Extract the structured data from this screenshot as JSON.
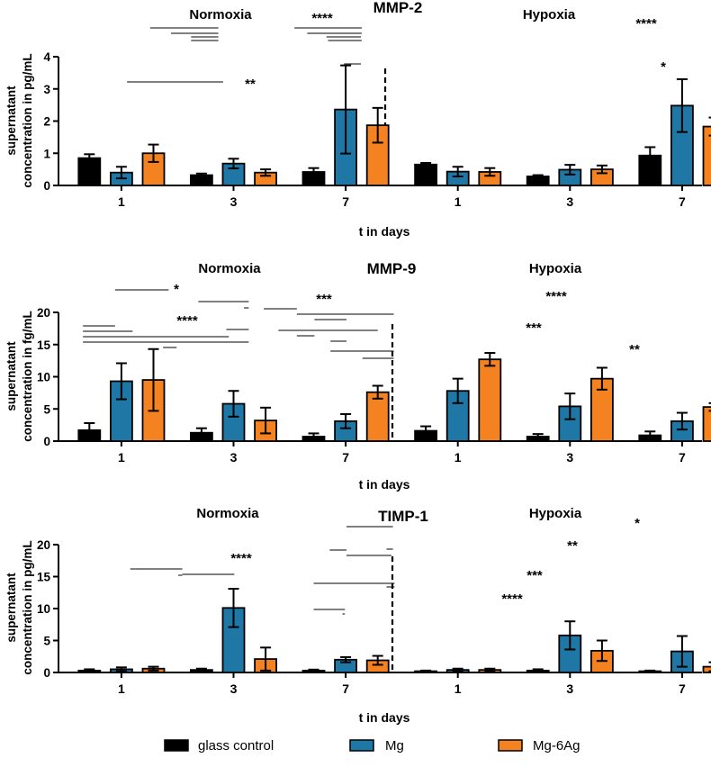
{
  "colors": {
    "glass": "#000000",
    "mg": "#1f77a6",
    "mgag": "#f58220",
    "line": "#000000"
  },
  "legend": [
    {
      "key": "glass",
      "label": "glass control"
    },
    {
      "key": "mg",
      "label": "Mg"
    },
    {
      "key": "mgag",
      "label": "Mg-6Ag"
    }
  ],
  "chart_data": [
    {
      "type": "bar",
      "title": "MMP-2",
      "ylabel_line1": "supernatant",
      "ylabel_line2": "concentration in pg/mL",
      "xlabel": "t in days",
      "ylim": [
        0,
        4
      ],
      "yticks": [
        "0",
        "1",
        "2",
        "3",
        "4"
      ],
      "conditions": [
        "Normoxia",
        "Hypoxia"
      ],
      "categories": [
        "1",
        "3",
        "7",
        "1",
        "3",
        "7"
      ],
      "series": [
        {
          "name": "glass control",
          "values": [
            0.85,
            0.32,
            0.42,
            0.65,
            0.28,
            0.93
          ],
          "errors": [
            0.12,
            0.05,
            0.12,
            0.05,
            0.04,
            0.26
          ]
        },
        {
          "name": "Mg",
          "values": [
            0.4,
            0.68,
            2.36,
            0.43,
            0.49,
            2.48
          ],
          "errors": [
            0.18,
            0.15,
            1.37,
            0.15,
            0.15,
            0.82
          ]
        },
        {
          "name": "Mg-6Ag",
          "values": [
            1.0,
            0.4,
            1.87,
            0.42,
            0.5,
            1.83
          ],
          "errors": [
            0.27,
            0.1,
            0.54,
            0.12,
            0.12,
            0.28
          ]
        }
      ],
      "significance": [
        {
          "label": "****",
          "lines": [
            [
              4.3,
              8.55
            ],
            [
              5.6,
              8.55
            ],
            [
              6.85,
              8.55
            ],
            [
              6.85,
              8.55
            ]
          ]
        },
        {
          "label": "**",
          "lines": [
            [
              2.85,
              8.85
            ]
          ]
        },
        {
          "label": "****",
          "lines": [
            [
              13.3,
              17.5
            ],
            [
              14.1,
              17.5
            ],
            [
              15.3,
              17.45
            ],
            [
              15.4,
              17.5
            ]
          ]
        },
        {
          "label": "*",
          "lines": [
            [
              16.4,
              17.45
            ]
          ]
        }
      ]
    },
    {
      "type": "bar",
      "title": "MMP-9",
      "ylabel_line1": "supernatant",
      "ylabel_line2": "concentration in fg/mL",
      "xlabel": "t in days",
      "ylim": [
        0,
        20
      ],
      "yticks": [
        "0",
        "5",
        "10",
        "15",
        "20"
      ],
      "conditions": [
        "Normoxia",
        "Hypoxia"
      ],
      "categories": [
        "1",
        "3",
        "7",
        "1",
        "3",
        "7"
      ],
      "series": [
        {
          "name": "glass control",
          "values": [
            1.7,
            1.3,
            0.7,
            1.6,
            0.7,
            0.9
          ],
          "errors": [
            1.1,
            0.7,
            0.5,
            0.7,
            0.4,
            0.6
          ]
        },
        {
          "name": "Mg",
          "values": [
            9.3,
            5.8,
            3.1,
            7.8,
            5.4,
            3.1
          ],
          "errors": [
            2.8,
            2.0,
            1.1,
            1.9,
            2.0,
            1.3
          ]
        },
        {
          "name": "Mg-6Ag",
          "values": [
            9.5,
            3.2,
            7.6,
            12.7,
            9.7,
            5.3
          ],
          "errors": [
            4.8,
            2.0,
            1.0,
            1.0,
            1.7,
            0.6
          ]
        }
      ],
      "significance": [
        {
          "label": "*",
          "lines": [
            [
              2.1,
              5.45
            ]
          ]
        },
        {
          "label": "***",
          "lines": [
            [
              7.3,
              10.45
            ],
            [
              10.15,
              10.45
            ]
          ]
        },
        {
          "label": "****",
          "lines": [
            [
              0.1,
              2.1
            ],
            [
              0.1,
              3.2
            ],
            [
              0.1,
              9.2
            ],
            [
              0.1,
              10.45
            ],
            [
              5.1,
              5.95
            ],
            [
              9.05,
              10.45
            ]
          ]
        },
        {
          "label": "****",
          "lines": [
            [
              11.4,
              12.45
            ],
            [
              11.4,
              13.45
            ],
            [
              13.45,
              19.5
            ],
            [
              14.55,
              16.55
            ]
          ]
        },
        {
          "label": "***",
          "lines": [
            [
              12.3,
              18.5
            ],
            [
              13.45,
              14.55
            ],
            [
              15.55,
              16.55
            ]
          ]
        },
        {
          "label": "**",
          "lines": [
            [
              15.55,
              19.5
            ],
            [
              17.55,
              19.5
            ]
          ]
        }
      ]
    },
    {
      "type": "bar",
      "title": "TIMP-1",
      "ylabel_line1": "supernatant",
      "ylabel_line2": "concentration in pg/mL",
      "xlabel": "t in days",
      "ylim": [
        0,
        20
      ],
      "yticks": [
        "0",
        "5",
        "10",
        "15",
        "20"
      ],
      "conditions": [
        "Normoxia",
        "Hypoxia"
      ],
      "categories": [
        "1",
        "3",
        "7",
        "1",
        "3",
        "7"
      ],
      "series": [
        {
          "name": "glass control",
          "values": [
            0.3,
            0.4,
            0.3,
            0.2,
            0.3,
            0.2
          ],
          "errors": [
            0.2,
            0.2,
            0.15,
            0.1,
            0.2,
            0.1
          ]
        },
        {
          "name": "Mg",
          "values": [
            0.5,
            10.1,
            2.0,
            0.4,
            5.8,
            3.3
          ],
          "errors": [
            0.3,
            3.0,
            0.4,
            0.2,
            2.2,
            2.4
          ]
        },
        {
          "name": "Mg-6Ag",
          "values": [
            0.6,
            2.1,
            1.9,
            0.4,
            3.4,
            0.9
          ],
          "errors": [
            0.3,
            1.8,
            0.7,
            0.2,
            1.6,
            0.7
          ]
        }
      ],
      "significance": [
        {
          "label": "****",
          "lines": [
            [
              3.05,
              6.3
            ],
            [
              6.05,
              6.3
            ],
            [
              6.3,
              6.55
            ],
            [
              6.55,
              9.55
            ]
          ]
        },
        {
          "label": "****",
          "lines": [
            [
              14.5,
              16.45
            ],
            [
              16.3,
              16.45
            ]
          ]
        },
        {
          "label": "***",
          "lines": [
            [
              14.5,
              19.55
            ],
            [
              19.05,
              19.55
            ]
          ]
        },
        {
          "label": "**",
          "lines": [
            [
              15.5,
              16.55
            ],
            [
              16.55,
              19.35
            ]
          ]
        },
        {
          "label": "*",
          "lines": [
            [
              16.55,
              19.45
            ],
            [
              19.05,
              19.45
            ]
          ]
        }
      ]
    }
  ]
}
